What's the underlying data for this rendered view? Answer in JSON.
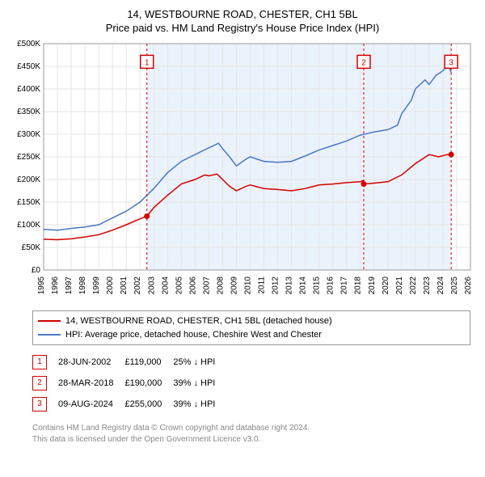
{
  "title_line1": "14, WESTBOURNE ROAD, CHESTER, CH1 5BL",
  "title_line2": "Price paid vs. HM Land Registry's House Price Index (HPI)",
  "chart": {
    "type": "line",
    "background_color": "#ffffff",
    "grid_color": "#e6e6e6",
    "axis_color": "#999999",
    "tick_font_size": 10,
    "tick_color": "#000000",
    "x_years": [
      1995,
      1996,
      1997,
      1998,
      1999,
      2000,
      2001,
      2002,
      2003,
      2004,
      2005,
      2006,
      2007,
      2008,
      2009,
      2010,
      2011,
      2012,
      2013,
      2014,
      2015,
      2016,
      2017,
      2018,
      2019,
      2020,
      2021,
      2022,
      2023,
      2024,
      2025,
      2026
    ],
    "y_min": 0,
    "y_max": 500000,
    "y_tick_step": 50000,
    "y_tick_labels": [
      "£0",
      "£50K",
      "£100K",
      "£150K",
      "£200K",
      "£250K",
      "£300K",
      "£350K",
      "£400K",
      "£450K",
      "£500K"
    ],
    "band": {
      "x_start": 2002.5,
      "x_end": 2024.6,
      "fill": "#eaf2fb"
    },
    "series": [
      {
        "name": "property_price",
        "label": "14, WESTBOURNE ROAD, CHESTER, CH1 5BL (detached house)",
        "color": "#d40000",
        "line_width": 1.5,
        "data": [
          [
            1995,
            68000
          ],
          [
            1996,
            67000
          ],
          [
            1997,
            69000
          ],
          [
            1998,
            73000
          ],
          [
            1999,
            78000
          ],
          [
            2000,
            88000
          ],
          [
            2001,
            100000
          ],
          [
            2002,
            113000
          ],
          [
            2002.5,
            119000
          ],
          [
            2003,
            138000
          ],
          [
            2004,
            165000
          ],
          [
            2005,
            190000
          ],
          [
            2006,
            200000
          ],
          [
            2006.7,
            210000
          ],
          [
            2007,
            208000
          ],
          [
            2007.6,
            212000
          ],
          [
            2008,
            200000
          ],
          [
            2008.5,
            185000
          ],
          [
            2009,
            175000
          ],
          [
            2009.7,
            185000
          ],
          [
            2010,
            188000
          ],
          [
            2011,
            180000
          ],
          [
            2012,
            178000
          ],
          [
            2013,
            175000
          ],
          [
            2014,
            180000
          ],
          [
            2015,
            188000
          ],
          [
            2016,
            190000
          ],
          [
            2017,
            193000
          ],
          [
            2018,
            195000
          ],
          [
            2018.24,
            198000
          ],
          [
            2018.25,
            190000
          ],
          [
            2019,
            192000
          ],
          [
            2020,
            195000
          ],
          [
            2021,
            210000
          ],
          [
            2022,
            235000
          ],
          [
            2023,
            255000
          ],
          [
            2023.7,
            250000
          ],
          [
            2024.3,
            255000
          ],
          [
            2024.6,
            255000
          ]
        ]
      },
      {
        "name": "hpi",
        "label": "HPI: Average price, detached house, Cheshire West and Chester",
        "color": "#4a78c4",
        "line_width": 1.5,
        "data": [
          [
            1995,
            90000
          ],
          [
            1996,
            88000
          ],
          [
            1997,
            92000
          ],
          [
            1998,
            95000
          ],
          [
            1999,
            100000
          ],
          [
            2000,
            115000
          ],
          [
            2001,
            130000
          ],
          [
            2002,
            150000
          ],
          [
            2003,
            180000
          ],
          [
            2004,
            215000
          ],
          [
            2005,
            240000
          ],
          [
            2006,
            255000
          ],
          [
            2007,
            270000
          ],
          [
            2007.7,
            280000
          ],
          [
            2008,
            268000
          ],
          [
            2008.5,
            250000
          ],
          [
            2009,
            230000
          ],
          [
            2009.7,
            245000
          ],
          [
            2010,
            250000
          ],
          [
            2011,
            240000
          ],
          [
            2012,
            238000
          ],
          [
            2013,
            240000
          ],
          [
            2014,
            252000
          ],
          [
            2015,
            265000
          ],
          [
            2016,
            275000
          ],
          [
            2017,
            285000
          ],
          [
            2018,
            298000
          ],
          [
            2019,
            305000
          ],
          [
            2020,
            310000
          ],
          [
            2020.7,
            320000
          ],
          [
            2021,
            345000
          ],
          [
            2021.7,
            375000
          ],
          [
            2022,
            400000
          ],
          [
            2022.7,
            420000
          ],
          [
            2023,
            410000
          ],
          [
            2023.5,
            430000
          ],
          [
            2024,
            440000
          ],
          [
            2024.4,
            455000
          ],
          [
            2024.6,
            435000
          ]
        ]
      }
    ],
    "markers": [
      {
        "n": "1",
        "x": 2002.5,
        "y": 119000,
        "box_y": 460000,
        "color": "#d40000"
      },
      {
        "n": "2",
        "x": 2018.25,
        "y": 190000,
        "box_y": 460000,
        "color": "#d40000"
      },
      {
        "n": "3",
        "x": 2024.6,
        "y": 255000,
        "box_y": 460000,
        "color": "#d40000"
      }
    ]
  },
  "legend": [
    {
      "color": "#d40000",
      "label": "14, WESTBOURNE ROAD, CHESTER, CH1 5BL (detached house)"
    },
    {
      "color": "#4a78c4",
      "label": "HPI: Average price, detached house, Cheshire West and Chester"
    }
  ],
  "marker_rows": [
    {
      "n": "1",
      "color": "#d40000",
      "date": "28-JUN-2002",
      "price": "£119,000",
      "delta": "25% ↓ HPI"
    },
    {
      "n": "2",
      "color": "#d40000",
      "date": "28-MAR-2018",
      "price": "£190,000",
      "delta": "39% ↓ HPI"
    },
    {
      "n": "3",
      "color": "#d40000",
      "date": "09-AUG-2024",
      "price": "£255,000",
      "delta": "39% ↓ HPI"
    }
  ],
  "footnote_line1": "Contains HM Land Registry data © Crown copyright and database right 2024.",
  "footnote_line2": "This data is licensed under the Open Government Licence v3.0."
}
